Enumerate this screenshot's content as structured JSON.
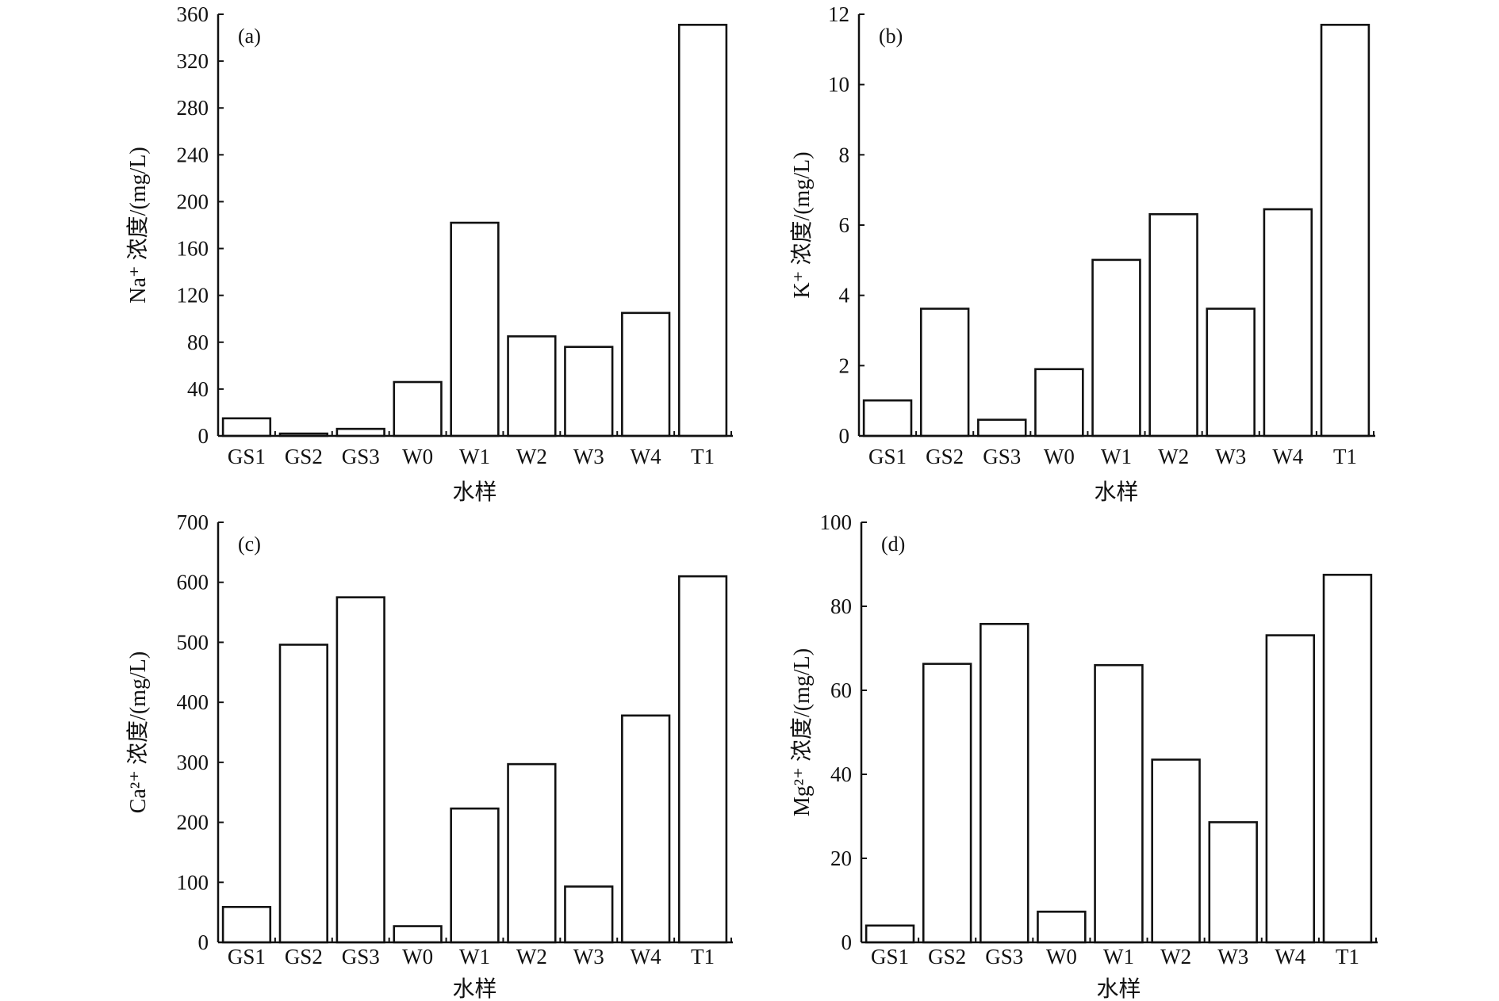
{
  "chart_data": [
    {
      "type": "bar",
      "panel_label": "(a)",
      "categories": [
        "GS1",
        "GS2",
        "GS3",
        "W0",
        "W1",
        "W2",
        "W3",
        "W4",
        "T1"
      ],
      "values": [
        15,
        2,
        6,
        46,
        182,
        85,
        76,
        105,
        351
      ],
      "ylabel": "Na⁺ 浓度/(mg/L)",
      "xlabel": "水样",
      "ylim": [
        0,
        360
      ],
      "yticks": [
        0,
        40,
        80,
        120,
        160,
        200,
        240,
        280,
        320,
        360
      ],
      "grid": false
    },
    {
      "type": "bar",
      "panel_label": "(b)",
      "categories": [
        "GS1",
        "GS2",
        "GS3",
        "W0",
        "W1",
        "W2",
        "W3",
        "W4",
        "T1"
      ],
      "values": [
        1.01,
        3.62,
        0.46,
        1.9,
        5.01,
        6.31,
        3.62,
        6.45,
        11.7
      ],
      "ylabel": "K⁺ 浓度/(mg/L)",
      "xlabel": "水样",
      "ylim": [
        0,
        12
      ],
      "yticks": [
        0,
        2,
        4,
        6,
        8,
        10,
        12
      ],
      "grid": false
    },
    {
      "type": "bar",
      "panel_label": "(c)",
      "categories": [
        "GS1",
        "GS2",
        "GS3",
        "W0",
        "W1",
        "W2",
        "W3",
        "W4",
        "T1"
      ],
      "values": [
        59,
        496,
        575,
        27,
        223,
        297,
        93,
        378,
        610
      ],
      "ylabel": "Ca²⁺ 浓度/(mg/L)",
      "xlabel": "水样",
      "ylim": [
        0,
        700
      ],
      "yticks": [
        0,
        100,
        200,
        300,
        400,
        500,
        600,
        700
      ],
      "grid": false
    },
    {
      "type": "bar",
      "panel_label": "(d)",
      "categories": [
        "GS1",
        "GS2",
        "GS3",
        "W0",
        "W1",
        "W2",
        "W3",
        "W4",
        "T1"
      ],
      "values": [
        4.0,
        66.3,
        75.8,
        7.3,
        66.0,
        43.5,
        28.6,
        73.1,
        87.5
      ],
      "ylabel": "Mg²⁺ 浓度/(mg/L)",
      "xlabel": "水样",
      "ylim": [
        0,
        100
      ],
      "yticks": [
        0,
        20,
        40,
        60,
        80,
        100
      ],
      "grid": false
    }
  ],
  "colors": {
    "bar_fill": "#ffffff",
    "bar_stroke": "#111111",
    "axis": "#111111"
  }
}
